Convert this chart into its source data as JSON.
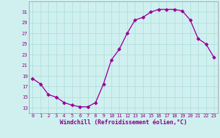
{
  "x": [
    0,
    1,
    2,
    3,
    4,
    5,
    6,
    7,
    8,
    9,
    10,
    11,
    12,
    13,
    14,
    15,
    16,
    17,
    18,
    19,
    20,
    21,
    22,
    23
  ],
  "y": [
    18.5,
    17.5,
    15.5,
    15.0,
    14.0,
    13.5,
    13.2,
    13.2,
    14.0,
    17.5,
    22.0,
    24.0,
    27.0,
    29.5,
    30.0,
    31.0,
    31.5,
    31.5,
    31.5,
    31.2,
    29.5,
    26.0,
    25.0,
    22.5
  ],
  "line_color": "#990099",
  "marker": "D",
  "marker_size": 2.5,
  "bg_color": "#d0f0f0",
  "grid_color": "#b0dede",
  "xlabel": "Windchill (Refroidissement éolien,°C)",
  "xlabel_color": "#800080",
  "ylim": [
    12,
    33
  ],
  "xlim": [
    -0.5,
    23.5
  ],
  "yticks": [
    13,
    15,
    17,
    19,
    21,
    23,
    25,
    27,
    29,
    31
  ],
  "xticks": [
    0,
    1,
    2,
    3,
    4,
    5,
    6,
    7,
    8,
    9,
    10,
    11,
    12,
    13,
    14,
    15,
    16,
    17,
    18,
    19,
    20,
    21,
    22,
    23
  ],
  "tick_color": "#800080",
  "tick_fontsize": 5,
  "xlabel_fontsize": 6,
  "line_width": 1.0,
  "spine_color": "#909090"
}
